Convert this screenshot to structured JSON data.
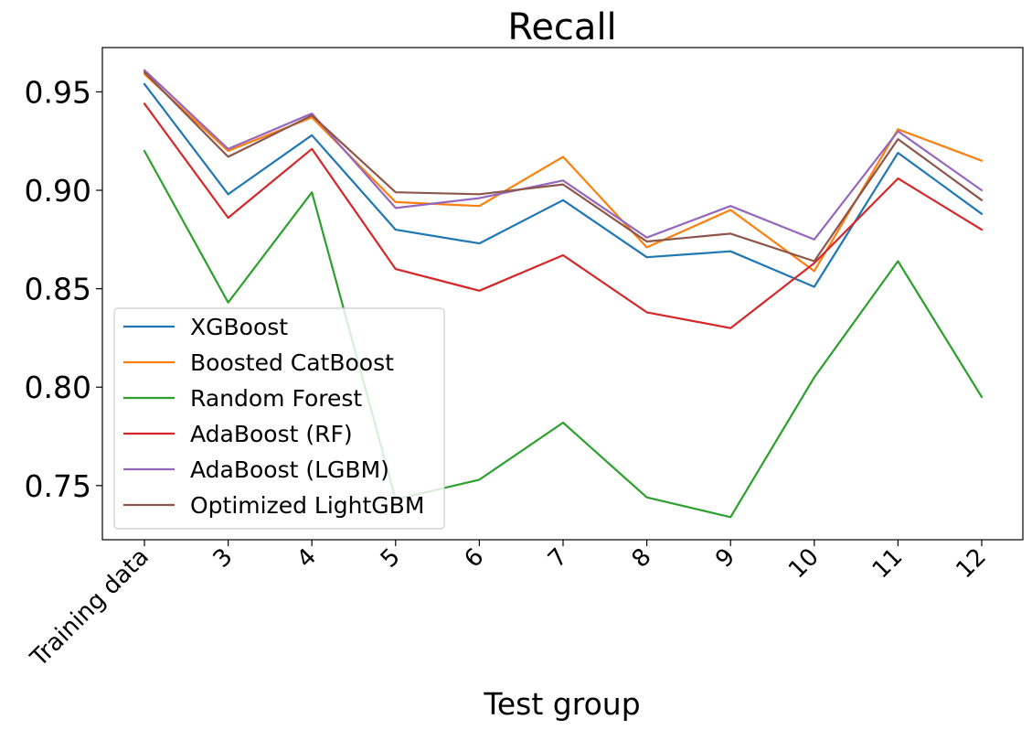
{
  "chart_data": {
    "type": "line",
    "title": "Recall",
    "xlabel": "Test group",
    "ylabel": "",
    "categories": [
      "Training data",
      "3",
      "4",
      "5",
      "6",
      "7",
      "8",
      "9",
      "10",
      "11",
      "12"
    ],
    "ylim": [
      0.7225,
      0.9725
    ],
    "yticks": [
      "0.75",
      "0.80",
      "0.85",
      "0.90",
      "0.95"
    ],
    "grid": false,
    "legend_position": "lower-left",
    "series": [
      {
        "name": "XGBoost",
        "color": "#1f77b4",
        "values": [
          0.954,
          0.898,
          0.928,
          0.88,
          0.873,
          0.895,
          0.866,
          0.869,
          0.851,
          0.919,
          0.888
        ]
      },
      {
        "name": "Boosted CatBoost",
        "color": "#ff7f0e",
        "values": [
          0.959,
          0.92,
          0.937,
          0.894,
          0.892,
          0.917,
          0.871,
          0.89,
          0.859,
          0.931,
          0.915
        ]
      },
      {
        "name": "Random Forest",
        "color": "#2ca02c",
        "values": [
          0.92,
          0.843,
          0.899,
          0.743,
          0.753,
          0.782,
          0.744,
          0.734,
          0.805,
          0.864,
          0.795
        ]
      },
      {
        "name": "AdaBoost (RF)",
        "color": "#d62728",
        "values": [
          0.944,
          0.886,
          0.921,
          0.86,
          0.849,
          0.867,
          0.838,
          0.83,
          0.863,
          0.906,
          0.88
        ]
      },
      {
        "name": "AdaBoost (LGBM)",
        "color": "#9467bd",
        "values": [
          0.961,
          0.921,
          0.939,
          0.891,
          0.896,
          0.905,
          0.876,
          0.892,
          0.875,
          0.93,
          0.9
        ]
      },
      {
        "name": "Optimized LightGBM",
        "color": "#8c564b",
        "values": [
          0.96,
          0.917,
          0.938,
          0.899,
          0.898,
          0.903,
          0.874,
          0.878,
          0.864,
          0.926,
          0.895
        ]
      }
    ]
  }
}
